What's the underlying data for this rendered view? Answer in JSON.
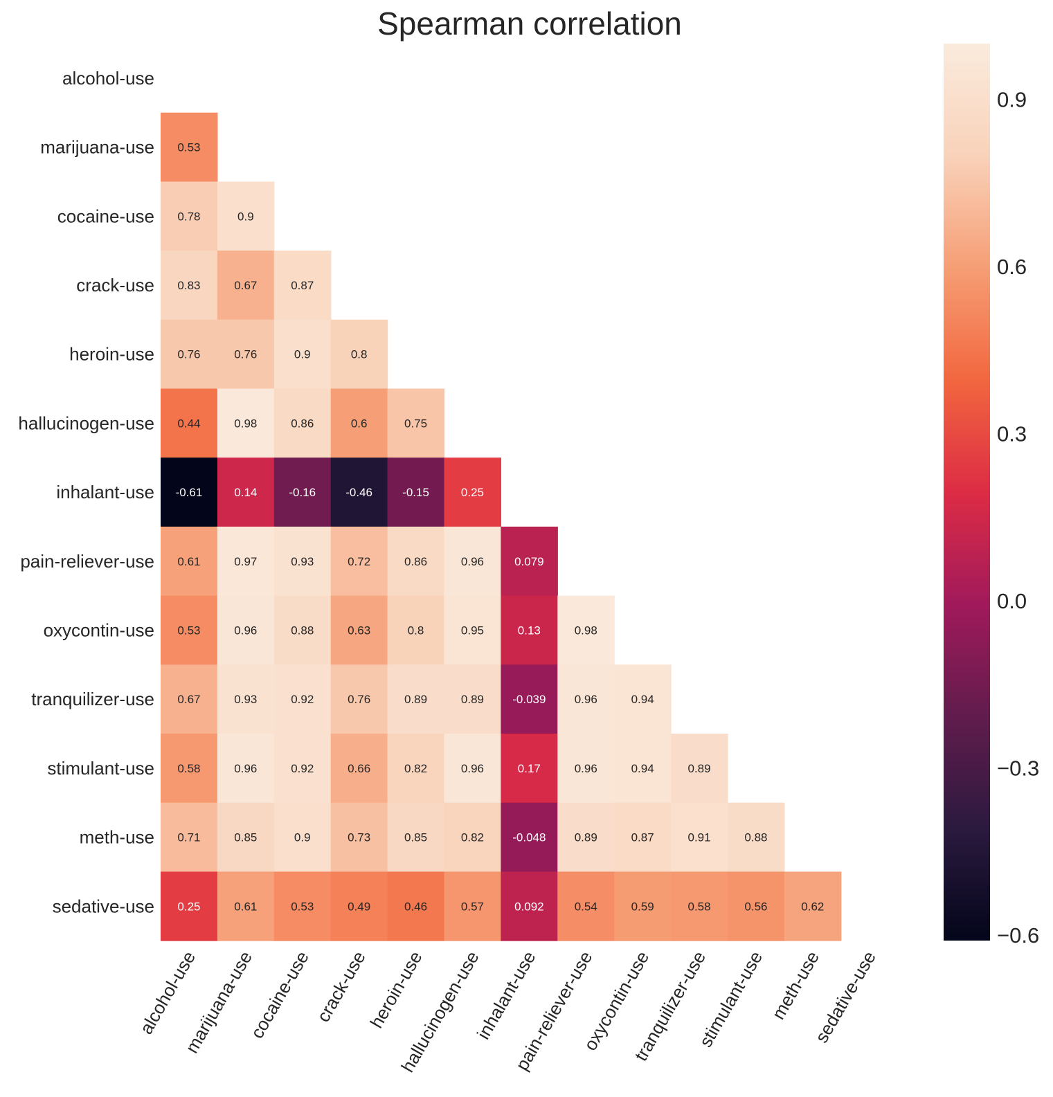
{
  "chart_data": {
    "type": "heatmap",
    "title": "Spearman correlation",
    "xlabel": "",
    "ylabel": "",
    "mask": "upper-triangle-including-diagonal",
    "categories": [
      "alcohol-use",
      "marijuana-use",
      "cocaine-use",
      "crack-use",
      "heroin-use",
      "hallucinogen-use",
      "inhalant-use",
      "pain-reliever-use",
      "oxycontin-use",
      "tranquilizer-use",
      "stimulant-use",
      "meth-use",
      "sedative-use"
    ],
    "values": [
      [],
      [
        0.53
      ],
      [
        0.78,
        0.9
      ],
      [
        0.83,
        0.67,
        0.87
      ],
      [
        0.76,
        0.76,
        0.9,
        0.8
      ],
      [
        0.44,
        0.98,
        0.86,
        0.6,
        0.75
      ],
      [
        -0.61,
        0.14,
        -0.16,
        -0.46,
        -0.15,
        0.25
      ],
      [
        0.61,
        0.97,
        0.93,
        0.72,
        0.86,
        0.96,
        0.079
      ],
      [
        0.53,
        0.96,
        0.88,
        0.63,
        0.8,
        0.95,
        0.13,
        0.98
      ],
      [
        0.67,
        0.93,
        0.92,
        0.76,
        0.89,
        0.89,
        -0.039,
        0.96,
        0.94
      ],
      [
        0.58,
        0.96,
        0.92,
        0.66,
        0.82,
        0.96,
        0.17,
        0.96,
        0.94,
        0.89
      ],
      [
        0.71,
        0.85,
        0.9,
        0.73,
        0.85,
        0.82,
        -0.048,
        0.89,
        0.87,
        0.91,
        0.88
      ],
      [
        0.25,
        0.61,
        0.53,
        0.49,
        0.46,
        0.57,
        0.092,
        0.54,
        0.59,
        0.58,
        0.56,
        0.62
      ]
    ],
    "colorbar": {
      "vmin": -0.61,
      "vmax": 1.0,
      "ticks": [
        0.9,
        0.6,
        0.3,
        0.0,
        -0.3,
        -0.6
      ],
      "tick_labels": [
        "0.9",
        "0.6",
        "0.3",
        "0.0",
        "−0.3",
        "−0.6"
      ],
      "colormap": "rocket",
      "stops": [
        "#03051a",
        "#2b1a3e",
        "#611c4d",
        "#a11a5b",
        "#dd2c45",
        "#f2673f",
        "#f69e75",
        "#f9d2ba",
        "#faebdd"
      ]
    },
    "grid": false,
    "legend": "colorbar-right"
  }
}
